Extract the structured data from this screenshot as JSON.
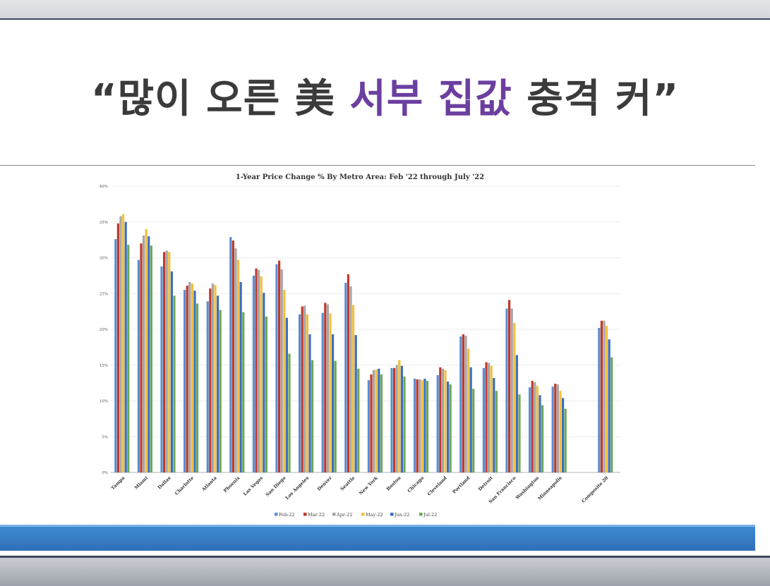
{
  "headline": {
    "open_quote": "“",
    "part1": "많이 오른 美 ",
    "accent": "서부 집값",
    "part2": " 충격 커",
    "close_quote": "”",
    "accent_color": "#6b3fa0"
  },
  "chart_data": {
    "type": "bar",
    "title": "1-Year Price Change % By Metro Area: Feb '22 through July '22",
    "xlabel": "",
    "ylabel": "",
    "ylim": [
      0,
      40
    ],
    "yticks": [
      "0%",
      "5%",
      "10%",
      "15%",
      "20%",
      "25%",
      "30%",
      "35%",
      "40%"
    ],
    "grid": true,
    "legend": "bottom",
    "categories": [
      "Tampa",
      "Miami",
      "Dallas",
      "Charlotte",
      "Atlanta",
      "Phoenix",
      "Las Vegas",
      "San Diego",
      "Los Angeles",
      "Denver",
      "Seattle",
      "New York",
      "Boston",
      "Chicago",
      "Cleveland",
      "Portland",
      "Detroit",
      "San Francisco",
      "Washington",
      "Minneapolis",
      "Composite 20"
    ],
    "series": [
      {
        "name": "Feb-22",
        "color": "#5b8fd0",
        "values": [
          32.6,
          29.7,
          28.8,
          25.5,
          23.9,
          32.9,
          27.5,
          29.1,
          22.1,
          22.3,
          26.5,
          12.9,
          14.6,
          13.1,
          13.6,
          19.0,
          14.6,
          22.9,
          11.9,
          12.0,
          20.2
        ]
      },
      {
        "name": "Mar-22",
        "color": "#c0392b",
        "values": [
          34.8,
          32.0,
          30.8,
          26.1,
          25.7,
          32.4,
          28.5,
          29.6,
          23.2,
          23.7,
          27.7,
          13.7,
          14.6,
          13.0,
          14.7,
          19.3,
          15.4,
          24.1,
          12.8,
          12.4,
          21.2
        ]
      },
      {
        "name": "Apr-22",
        "color": "#a5a5a5",
        "values": [
          35.8,
          33.1,
          31.0,
          26.6,
          26.4,
          31.3,
          28.3,
          28.4,
          23.3,
          23.5,
          26.0,
          14.3,
          15.0,
          13.0,
          14.5,
          19.1,
          15.3,
          22.9,
          12.6,
          12.3,
          21.2
        ]
      },
      {
        "name": "May-22",
        "color": "#f2c040",
        "values": [
          36.1,
          34.0,
          30.8,
          26.4,
          26.2,
          29.7,
          27.4,
          25.5,
          22.1,
          22.2,
          23.4,
          14.4,
          15.7,
          12.9,
          14.3,
          17.3,
          14.9,
          20.9,
          12.1,
          11.4,
          20.5
        ]
      },
      {
        "name": "Jun-22",
        "color": "#3a6fc2",
        "values": [
          35.0,
          33.0,
          28.1,
          25.4,
          24.7,
          26.6,
          25.1,
          21.6,
          19.3,
          19.3,
          19.2,
          14.5,
          14.9,
          13.1,
          12.7,
          14.7,
          13.2,
          16.4,
          10.8,
          10.4,
          18.6
        ]
      },
      {
        "name": "Jul-22",
        "color": "#6fa85a",
        "values": [
          31.8,
          31.7,
          24.7,
          23.6,
          22.7,
          22.4,
          21.8,
          16.6,
          15.7,
          15.6,
          14.5,
          13.7,
          13.4,
          12.8,
          12.3,
          11.7,
          11.4,
          10.9,
          9.4,
          8.9,
          16.1
        ]
      }
    ]
  }
}
